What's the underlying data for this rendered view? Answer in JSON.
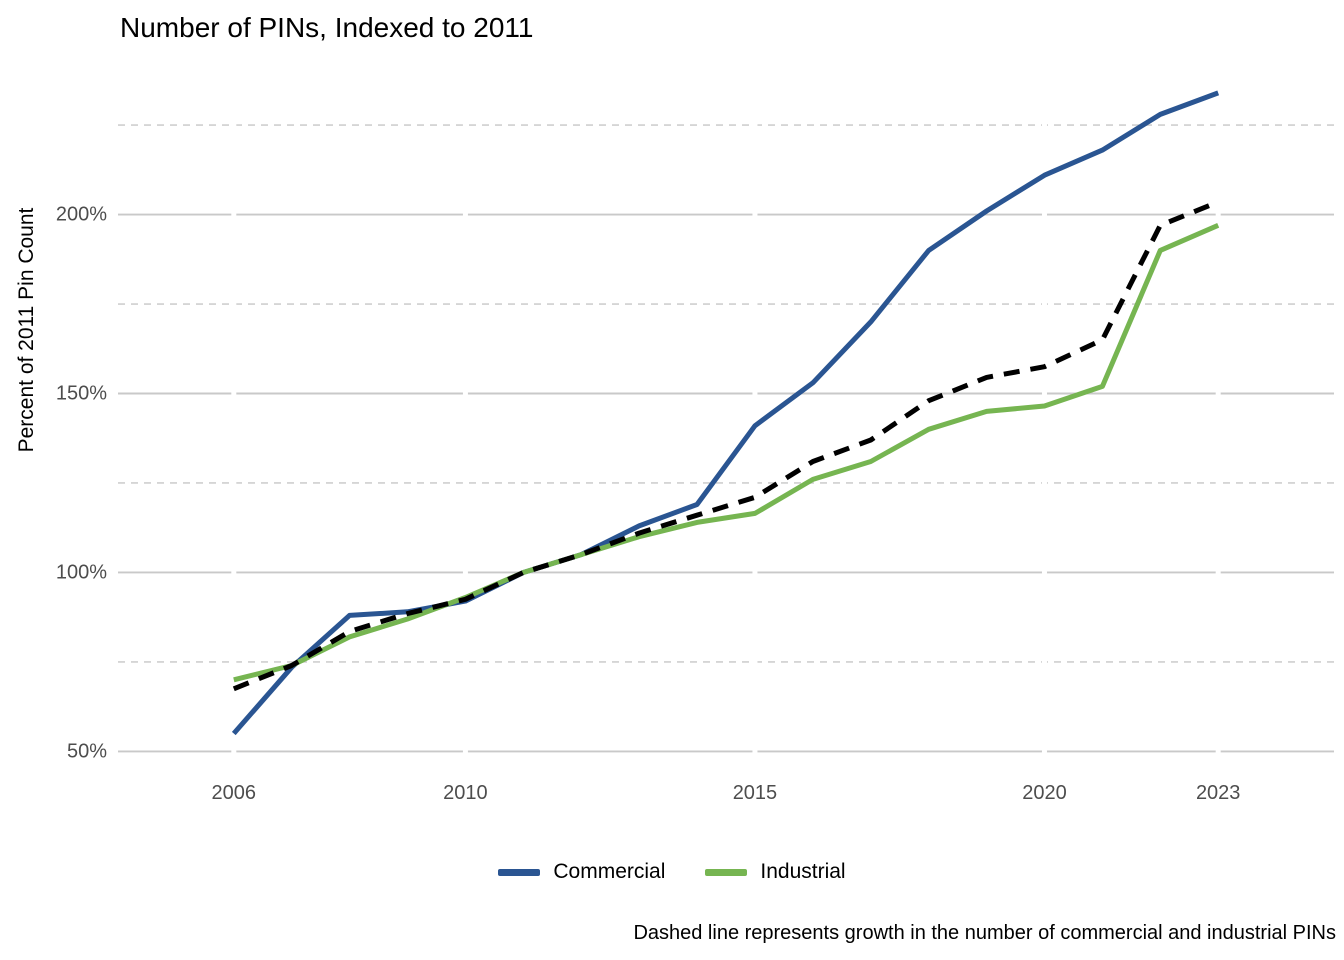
{
  "title": "Number of PINs, Indexed to 2011",
  "y_axis_title": "Percent of 2011 Pin Count",
  "caption": "Dashed line represents growth in the number of commercial and industrial PINs",
  "legend": [
    {
      "label": "Commercial",
      "color": "#2A5592"
    },
    {
      "label": "Industrial",
      "color": "#76B551"
    }
  ],
  "colors": {
    "commercial": "#2A5592",
    "industrial": "#76B551",
    "dashed_combined": "#000000",
    "major_grid": "#C9C9C9",
    "minor_grid": "#CFCFCF",
    "tick_label": "#4D4D4D",
    "background": "#FFFFFF"
  },
  "chart_data": {
    "type": "line",
    "title": "Number of PINs, Indexed to 2011",
    "xlabel": "",
    "ylabel": "Percent of 2011 Pin Count",
    "x": [
      2006,
      2007,
      2008,
      2009,
      2010,
      2011,
      2012,
      2013,
      2014,
      2015,
      2016,
      2017,
      2018,
      2019,
      2020,
      2021,
      2022,
      2023
    ],
    "series": [
      {
        "name": "Commercial",
        "color": "#2A5592",
        "style": "solid",
        "values": [
          55,
          73.5,
          88,
          89,
          92,
          100,
          105,
          113,
          119,
          141,
          153,
          170,
          190,
          201,
          211,
          218,
          228,
          234
        ]
      },
      {
        "name": "Industrial",
        "color": "#76B551",
        "style": "solid",
        "values": [
          70,
          74,
          82,
          87,
          93,
          100,
          105,
          110,
          114,
          116.5,
          126,
          131,
          140,
          145,
          146.5,
          152,
          190,
          197
        ]
      },
      {
        "name": "Commercial and industrial combined (dashed)",
        "color": "#000000",
        "style": "dashed",
        "values": [
          67.5,
          74,
          83.5,
          88.5,
          92.5,
          100,
          105,
          111,
          116,
          121,
          131,
          137,
          148,
          154.5,
          157.5,
          165,
          197,
          203.5
        ]
      }
    ],
    "x_ticks": [
      2006,
      2010,
      2015,
      2020,
      2023
    ],
    "y_ticks_major": [
      50,
      100,
      150,
      200
    ],
    "y_ticks_minor": [
      75,
      125,
      175,
      225
    ],
    "y_tick_suffix": "%",
    "xlim": [
      2004,
      2025
    ],
    "ylim": [
      46.2,
      237.6
    ],
    "grid": "horizontal-major-solid-minor-dashed",
    "legend_position": "bottom-center"
  }
}
